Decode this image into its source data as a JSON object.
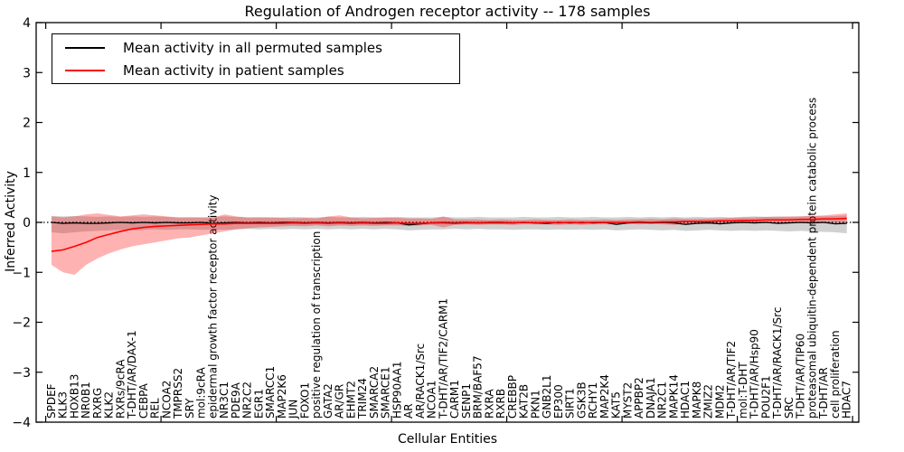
{
  "figure": {
    "title": "Regulation of Androgen receptor activity -- 178 samples",
    "xlabel": "Cellular Entities",
    "ylabel": "Inferred Activity"
  },
  "chart_data": {
    "type": "line",
    "title": "Regulation of Androgen receptor activity -- 178 samples",
    "xlabel": "Cellular Entities",
    "ylabel": "Inferred Activity",
    "ylim": [
      -4,
      4
    ],
    "yticks": [
      -4,
      -3,
      -2,
      -1,
      0,
      1,
      2,
      3,
      4
    ],
    "grid": false,
    "legend_position": "upper left",
    "zero_reference_line": true,
    "categories": [
      "SPDEF",
      "KLK3",
      "HOXB13",
      "NR0B1",
      "RXRG",
      "KLK2",
      "RXRs/9cRA",
      "T-DHT/AR/DAX-1",
      "CEBPA",
      "REL",
      "NCOA2",
      "TMPRSS2",
      "SRY",
      "mol:9cRA",
      "epidermal growth factor receptor activity",
      "NR3C1",
      "PDE9A",
      "NR2C2",
      "EGR1",
      "SMARCC1",
      "MAP2K6",
      "JUN",
      "FOXO1",
      "positive regulation of transcription",
      "GATA2",
      "AR/GR",
      "EHMT2",
      "TRIM24",
      "SMARCA2",
      "SMARCE1",
      "HSP90AA1",
      "AR",
      "AR/RACK1/Src",
      "NCOA1",
      "T-DHT/AR/TIF2/CARM1",
      "CARM1",
      "SENP1",
      "BRM/BAF57",
      "RXRA",
      "RXRB",
      "CREBBP",
      "KAT2B",
      "PKN1",
      "GNB2L1",
      "EP300",
      "SIRT1",
      "GSK3B",
      "RCHY1",
      "MAP2K4",
      "KAT5",
      "MYST2",
      "APPBP2",
      "DNAJA1",
      "NR2C1",
      "MAPK14",
      "HDAC1",
      "MAPK8",
      "ZMIZ2",
      "MDM2",
      "T-DHT/AR/TIF2",
      "mol:T-DHT",
      "T-DHT/AR/Hsp90",
      "POU2F1",
      "T-DHT/AR/RACK1/Src",
      "SRC",
      "T-DHT/AR/TIP60",
      "proteasomal ubiquitin-dependent protein catabolic process",
      "T-DHT/AR",
      "cell proliferation",
      "HDAC7"
    ],
    "series": [
      {
        "name": "Mean activity in all permuted samples",
        "color": "#000000",
        "band_color": "#000000",
        "band_opacity": 0.18,
        "values": [
          0,
          -0.02,
          -0.01,
          -0.02,
          -0.02,
          -0.01,
          0,
          -0.01,
          0,
          -0.01,
          0,
          -0.01,
          -0.01,
          0,
          -0.02,
          -0.01,
          0,
          -0.01,
          0,
          -0.01,
          0,
          0,
          -0.01,
          0,
          -0.01,
          0,
          -0.01,
          0,
          -0.01,
          0,
          -0.01,
          -0.05,
          -0.03,
          -0.01,
          0,
          -0.01,
          0,
          -0.01,
          0,
          0,
          -0.01,
          0,
          -0.01,
          -0.02,
          0,
          -0.01,
          0,
          -0.01,
          0,
          -0.04,
          -0.01,
          0,
          -0.01,
          0,
          -0.01,
          -0.04,
          -0.02,
          -0.01,
          -0.03,
          -0.01,
          0,
          -0.01,
          0,
          -0.02,
          -0.01,
          0,
          -0.01,
          0,
          -0.03,
          -0.02
        ],
        "band_upper": [
          0.13,
          0.12,
          0.13,
          0.12,
          0.11,
          0.12,
          0.11,
          0.12,
          0.11,
          0.12,
          0.11,
          0.1,
          0.11,
          0.1,
          0.11,
          0.12,
          0.11,
          0.1,
          0.11,
          0.1,
          0.1,
          0.11,
          0.1,
          0.1,
          0.11,
          0.1,
          0.1,
          0.11,
          0.1,
          0.1,
          0.11,
          0.1,
          0.1,
          0.1,
          0.11,
          0.1,
          0.1,
          0.11,
          0.1,
          0.1,
          0.1,
          0.11,
          0.1,
          0.1,
          0.11,
          0.1,
          0.1,
          0.11,
          0.1,
          0.1,
          0.11,
          0.1,
          0.11,
          0.1,
          0.11,
          0.1,
          0.11,
          0.1,
          0.11,
          0.1,
          0.11,
          0.12,
          0.11,
          0.12,
          0.11,
          0.12,
          0.13,
          0.12,
          0.13,
          0.14
        ],
        "band_lower": [
          -0.2,
          -0.22,
          -0.2,
          -0.18,
          -0.17,
          -0.16,
          -0.15,
          -0.16,
          -0.15,
          -0.14,
          -0.15,
          -0.14,
          -0.14,
          -0.15,
          -0.14,
          -0.15,
          -0.14,
          -0.13,
          -0.14,
          -0.13,
          -0.14,
          -0.13,
          -0.14,
          -0.13,
          -0.14,
          -0.13,
          -0.14,
          -0.13,
          -0.14,
          -0.13,
          -0.14,
          -0.16,
          -0.15,
          -0.14,
          -0.14,
          -0.13,
          -0.14,
          -0.13,
          -0.14,
          -0.14,
          -0.15,
          -0.14,
          -0.14,
          -0.15,
          -0.14,
          -0.15,
          -0.14,
          -0.15,
          -0.14,
          -0.16,
          -0.15,
          -0.14,
          -0.15,
          -0.16,
          -0.15,
          -0.17,
          -0.16,
          -0.15,
          -0.16,
          -0.17,
          -0.16,
          -0.17,
          -0.16,
          -0.17,
          -0.18,
          -0.17,
          -0.18,
          -0.19,
          -0.2,
          -0.22
        ]
      },
      {
        "name": "Mean activity in patient samples",
        "color": "#ff0000",
        "band_color": "#ff0000",
        "band_opacity": 0.3,
        "values": [
          -0.58,
          -0.55,
          -0.48,
          -0.4,
          -0.3,
          -0.24,
          -0.18,
          -0.13,
          -0.1,
          -0.08,
          -0.07,
          -0.06,
          -0.05,
          -0.04,
          -0.03,
          -0.03,
          -0.02,
          -0.02,
          -0.02,
          -0.02,
          -0.02,
          -0.01,
          -0.02,
          -0.01,
          -0.02,
          -0.01,
          -0.02,
          -0.01,
          -0.02,
          -0.02,
          -0.01,
          -0.02,
          -0.02,
          -0.01,
          -0.01,
          -0.02,
          -0.01,
          -0.01,
          -0.01,
          -0.01,
          -0.01,
          0,
          -0.01,
          0,
          -0.01,
          0,
          -0.01,
          0,
          0,
          0,
          0,
          0.01,
          0,
          0.01,
          0.01,
          0.02,
          0.02,
          0.02,
          0.03,
          0.03,
          0.04,
          0.04,
          0.05,
          0.05,
          0.05,
          0.06,
          0.06,
          0.07,
          0.07,
          0.08
        ],
        "band_upper": [
          0.12,
          0.1,
          0.12,
          0.16,
          0.18,
          0.15,
          0.12,
          0.14,
          0.16,
          0.14,
          0.12,
          0.1,
          0.09,
          0.1,
          0.09,
          0.16,
          0.12,
          0.1,
          0.09,
          0.1,
          0.09,
          0.08,
          0.09,
          0.08,
          0.12,
          0.14,
          0.1,
          0.08,
          0.09,
          0.1,
          0.09,
          0.08,
          0.08,
          0.07,
          0.12,
          0.06,
          0.06,
          0.06,
          0.05,
          0.06,
          0.05,
          0.05,
          0.06,
          0.05,
          0.05,
          0.06,
          0.05,
          0.05,
          0.06,
          0.05,
          0.06,
          0.06,
          0.07,
          0.06,
          0.08,
          0.07,
          0.07,
          0.08,
          0.08,
          0.09,
          0.1,
          0.1,
          0.11,
          0.11,
          0.12,
          0.12,
          0.13,
          0.14,
          0.16,
          0.18
        ],
        "band_lower": [
          -0.85,
          -1.0,
          -1.05,
          -0.85,
          -0.72,
          -0.62,
          -0.54,
          -0.48,
          -0.44,
          -0.4,
          -0.36,
          -0.32,
          -0.3,
          -0.26,
          -0.22,
          -0.18,
          -0.14,
          -0.12,
          -0.1,
          -0.09,
          -0.08,
          -0.07,
          -0.08,
          -0.06,
          -0.08,
          -0.06,
          -0.07,
          -0.06,
          -0.07,
          -0.06,
          -0.06,
          -0.07,
          -0.06,
          -0.05,
          -0.1,
          -0.05,
          -0.04,
          -0.05,
          -0.04,
          -0.04,
          -0.05,
          -0.04,
          -0.04,
          -0.04,
          -0.05,
          -0.04,
          -0.05,
          -0.04,
          -0.04,
          -0.04,
          -0.03,
          -0.04,
          -0.03,
          -0.04,
          -0.05,
          -0.03,
          -0.02,
          -0.03,
          -0.02,
          -0.02,
          -0.02,
          -0.02,
          -0.01,
          -0.02,
          -0.01,
          -0.01,
          -0.02,
          -0.01,
          -0.01,
          -0.01
        ]
      }
    ]
  }
}
